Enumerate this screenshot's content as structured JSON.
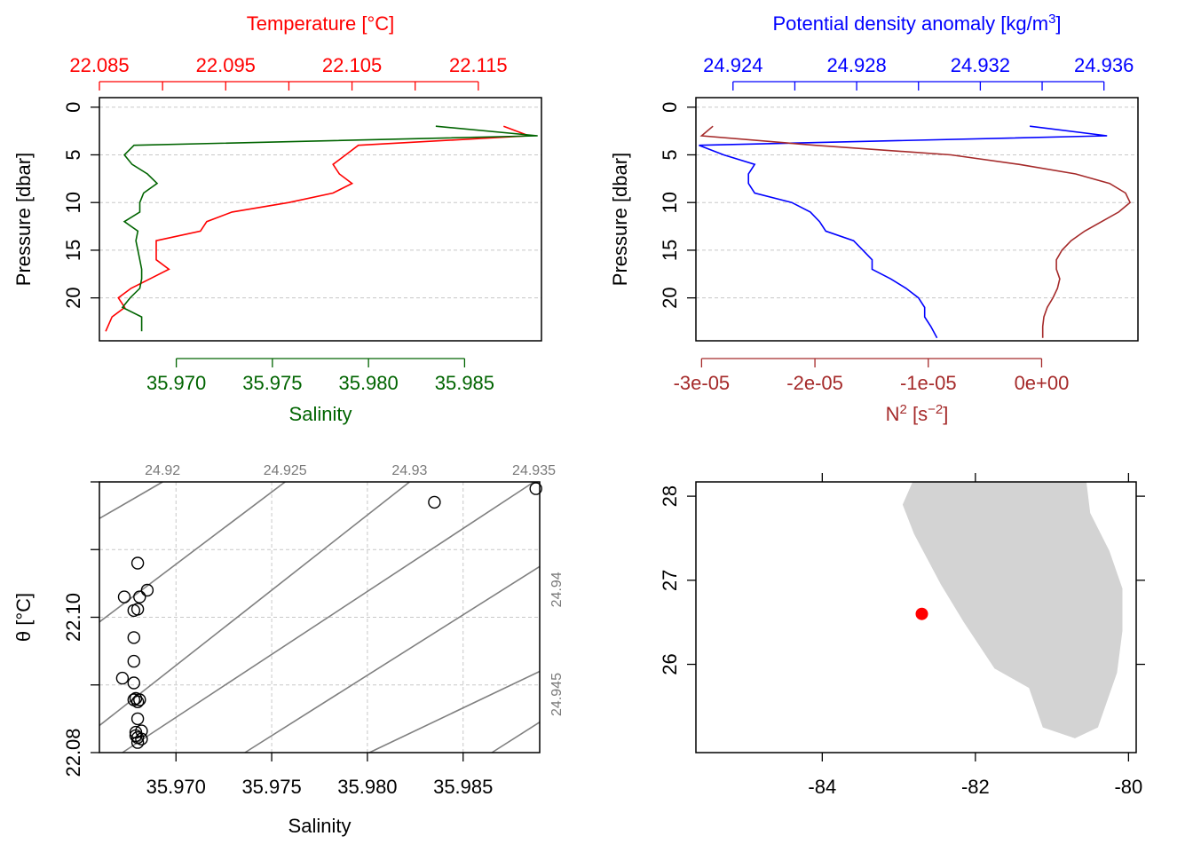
{
  "chart_data": [
    {
      "type": "line",
      "panel": "profile-temperature-salinity",
      "ylabel": "Pressure [dbar]",
      "ylim": [
        24.5,
        -1
      ],
      "yticks": [
        "0",
        "5",
        "10",
        "15",
        "20"
      ],
      "top_axis": {
        "label": "Temperature [°C]",
        "color": "#ff0000",
        "lim": [
          22.085,
          22.12
        ],
        "labeled_ticks": [
          "22.085",
          "22.095",
          "22.105",
          "22.115"
        ],
        "tick_values": [
          22.085,
          22.09,
          22.095,
          22.1,
          22.105,
          22.11,
          22.115
        ]
      },
      "bottom_axis": {
        "label": "Salinity",
        "color": "#006400",
        "lim": [
          35.966,
          35.989
        ],
        "tick_labels": [
          "35.970",
          "35.975",
          "35.980",
          "35.985"
        ]
      },
      "grid": true,
      "series": [
        {
          "axis": "top",
          "color": "#ff0000",
          "pressure": [
            2,
            3,
            4,
            5,
            6,
            7,
            8,
            9,
            10,
            11,
            12,
            13,
            14,
            15,
            16,
            17,
            18,
            19,
            20,
            21,
            22,
            23.5
          ],
          "values": [
            22.117,
            22.119,
            22.1055,
            22.1045,
            22.1035,
            22.104,
            22.105,
            22.1035,
            22.1,
            22.0955,
            22.0935,
            22.093,
            22.0895,
            22.0895,
            22.0895,
            22.0905,
            22.089,
            22.0875,
            22.0865,
            22.087,
            22.086,
            22.0855
          ]
        },
        {
          "axis": "bottom",
          "color": "#006400",
          "pressure": [
            2,
            3,
            4,
            5,
            6,
            7,
            8,
            9,
            10,
            11,
            12,
            13,
            14,
            15,
            16,
            17,
            18,
            19,
            20,
            21,
            22,
            23.5
          ],
          "values": [
            35.9835,
            35.9888,
            35.9678,
            35.9673,
            35.9677,
            35.9685,
            35.969,
            35.9683,
            35.9681,
            35.9681,
            35.9673,
            35.968,
            35.9679,
            35.968,
            35.9681,
            35.9682,
            35.9682,
            35.9681,
            35.9676,
            35.9672,
            35.9682,
            35.9682
          ]
        }
      ]
    },
    {
      "type": "line",
      "panel": "profile-density-n2",
      "ylabel": "Pressure [dbar]",
      "ylim": [
        24.5,
        -1
      ],
      "yticks": [
        "0",
        "5",
        "10",
        "15",
        "20"
      ],
      "top_axis": {
        "label": "Potential density anomaly [kg/m",
        "label_superscript": "3",
        "label_close": "]",
        "color": "#0000ff",
        "lim": [
          24.9228,
          24.9371
        ],
        "labeled_ticks": [
          "24.924",
          "24.928",
          "24.932",
          "24.936"
        ],
        "tick_values": [
          24.924,
          24.926,
          24.928,
          24.93,
          24.932,
          24.934,
          24.936
        ]
      },
      "bottom_axis": {
        "label": "N",
        "label_superscript": "2",
        "label_unit_open": " [s",
        "label_unit_superscript": "−2",
        "label_unit_close": "]",
        "color": "#a52a2a",
        "lim": [
          -3.05e-05,
          8.5e-06
        ],
        "tick_labels": [
          "-3e-05",
          "-2e-05",
          "-1e-05",
          "0e+00"
        ],
        "tick_values": [
          -3e-05,
          -2e-05,
          -1e-05,
          0
        ]
      },
      "grid": true,
      "series": [
        {
          "axis": "top",
          "color": "#0000ff",
          "pressure": [
            2,
            3,
            4,
            5,
            6,
            7,
            8,
            9,
            10,
            11,
            12,
            13,
            14,
            15,
            16,
            17,
            18,
            19,
            20,
            21,
            22,
            23,
            24.2
          ],
          "values": [
            24.9336,
            24.9361,
            24.9229,
            24.9237,
            24.9247,
            24.9245,
            24.9245,
            24.9247,
            24.9259,
            24.9265,
            24.9268,
            24.927,
            24.9279,
            24.9282,
            24.9285,
            24.9285,
            24.9291,
            24.9296,
            24.93,
            24.9302,
            24.9302,
            24.9304,
            24.9306
          ]
        },
        {
          "axis": "bottom",
          "color": "#a52a2a",
          "pressure": [
            2,
            3,
            4,
            5,
            6,
            7,
            8,
            9,
            10,
            11,
            12,
            13,
            14,
            15,
            16,
            17,
            18,
            19,
            20,
            21,
            22,
            23,
            24.2
          ],
          "values": [
            -2.9e-05,
            -3e-05,
            -2e-05,
            -8e-06,
            -2e-06,
            3e-06,
            6e-06,
            7.4e-06,
            7.8e-06,
            6.8e-06,
            5.3e-06,
            3.8e-06,
            2.6e-06,
            1.8e-06,
            1.3e-06,
            1.3e-06,
            1.6e-06,
            1.4e-06,
            1e-06,
            5e-07,
            2e-07,
            1e-07,
            1e-07
          ]
        }
      ]
    },
    {
      "type": "scatter",
      "panel": "ts-diagram",
      "xlabel": "Salinity",
      "ylabel": "θ [°C]",
      "xlim": [
        35.966,
        35.989
      ],
      "ylim": [
        22.08,
        22.12
      ],
      "x_tick_labels": [
        "35.970",
        "35.975",
        "35.980",
        "35.985"
      ],
      "y_tick_labels": [
        "22.08",
        "22.10"
      ],
      "grid": true,
      "isopycnal_labels_top": [
        "24.92",
        "24.925",
        "24.93",
        "24.935"
      ],
      "isopycnal_labels_right": [
        "24.94",
        "24.945"
      ],
      "isopycnals": [
        {
          "label": "24.92",
          "points": [
            [
              35.966,
              22.1146
            ],
            [
              35.9693,
              22.12
            ]
          ]
        },
        {
          "label": "24.925",
          "points": [
            [
              35.966,
              22.0993
            ],
            [
              35.9757,
              22.12
            ]
          ]
        },
        {
          "label": "24.93",
          "points": [
            [
              35.966,
              22.084
            ],
            [
              35.9822,
              22.12
            ]
          ]
        },
        {
          "label": "24.935",
          "points": [
            [
              35.9672,
              22.08
            ],
            [
              35.9887,
              22.12
            ]
          ]
        },
        {
          "label": "24.94",
          "points": [
            [
              35.9736,
              22.08
            ],
            [
              35.989,
              22.1075
            ]
          ]
        },
        {
          "label": "24.945",
          "points": [
            [
              35.9801,
              22.08
            ],
            [
              35.989,
              22.092
            ]
          ]
        },
        {
          "label": "",
          "points": [
            [
              35.9865,
              22.08
            ],
            [
              35.989,
              22.0845
            ]
          ]
        }
      ],
      "points": [
        {
          "x": 35.9888,
          "y": 22.119
        },
        {
          "x": 35.9835,
          "y": 22.117
        },
        {
          "x": 35.968,
          "y": 22.108
        },
        {
          "x": 35.9673,
          "y": 22.103
        },
        {
          "x": 35.9681,
          "y": 22.103
        },
        {
          "x": 35.9685,
          "y": 22.104
        },
        {
          "x": 35.9678,
          "y": 22.101
        },
        {
          "x": 35.968,
          "y": 22.1012
        },
        {
          "x": 35.9678,
          "y": 22.097
        },
        {
          "x": 35.9678,
          "y": 22.0935
        },
        {
          "x": 35.9672,
          "y": 22.091
        },
        {
          "x": 35.9678,
          "y": 22.0903
        },
        {
          "x": 35.9679,
          "y": 22.088
        },
        {
          "x": 35.9681,
          "y": 22.0878
        },
        {
          "x": 35.968,
          "y": 22.0875
        },
        {
          "x": 35.9678,
          "y": 22.0878
        },
        {
          "x": 35.968,
          "y": 22.085
        },
        {
          "x": 35.9679,
          "y": 22.083
        },
        {
          "x": 35.9682,
          "y": 22.0832
        },
        {
          "x": 35.968,
          "y": 22.0822
        },
        {
          "x": 35.9679,
          "y": 22.0825
        },
        {
          "x": 35.9682,
          "y": 22.082
        },
        {
          "x": 35.968,
          "y": 22.0815
        }
      ]
    },
    {
      "type": "map",
      "panel": "station-map",
      "xlim": [
        -85.65,
        -79.9
      ],
      "ylim": [
        24.95,
        28.17
      ],
      "x_tick_labels": [
        "-84",
        "-82",
        "-80"
      ],
      "x_tick_values": [
        -84,
        -82,
        -80
      ],
      "y_tick_labels": [
        "26",
        "27",
        "28"
      ],
      "y_tick_values": [
        26,
        27,
        28
      ],
      "land_color": "#d3d3d3",
      "station_color": "#ff0000",
      "station": {
        "lon": -82.7,
        "lat": 26.6
      },
      "coastline": [
        [
          -82.82,
          28.17
        ],
        [
          -80.55,
          28.17
        ],
        [
          -80.5,
          27.8
        ],
        [
          -80.25,
          27.35
        ],
        [
          -80.08,
          26.9
        ],
        [
          -80.08,
          26.4
        ],
        [
          -80.15,
          25.9
        ],
        [
          -80.4,
          25.25
        ],
        [
          -80.7,
          25.12
        ],
        [
          -81.12,
          25.25
        ],
        [
          -81.3,
          25.72
        ],
        [
          -81.75,
          25.95
        ],
        [
          -82.15,
          26.5
        ],
        [
          -82.45,
          26.95
        ],
        [
          -82.8,
          27.55
        ],
        [
          -82.95,
          27.9
        ],
        [
          -82.82,
          28.17
        ]
      ]
    }
  ]
}
